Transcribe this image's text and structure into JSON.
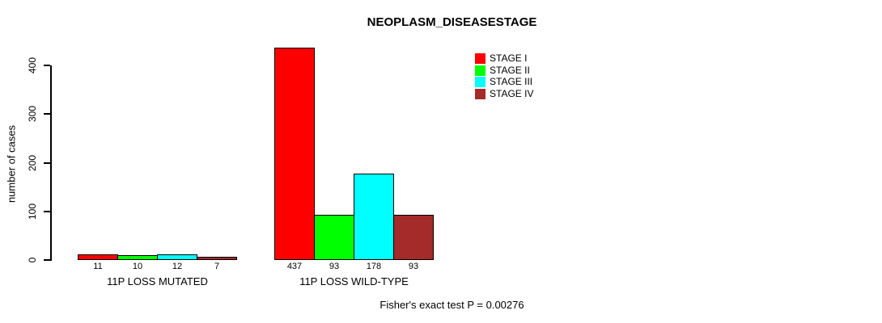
{
  "chart_data": {
    "type": "bar",
    "title": "NEOPLASM_DISEASESTAGE",
    "ylabel": "number of cases",
    "xlabel": "",
    "categories": [
      "11P LOSS MUTATED",
      "11P LOSS WILD-TYPE"
    ],
    "series": [
      {
        "name": "STAGE I",
        "color": "#ff0000",
        "values": [
          11,
          437
        ]
      },
      {
        "name": "STAGE II",
        "color": "#00ff00",
        "values": [
          10,
          93
        ]
      },
      {
        "name": "STAGE III",
        "color": "#00ffff",
        "values": [
          12,
          178
        ]
      },
      {
        "name": "STAGE IV",
        "color": "#a52a2a",
        "values": [
          7,
          93
        ]
      }
    ],
    "yticks": [
      0,
      100,
      200,
      300,
      400
    ],
    "ylim": [
      0,
      440
    ],
    "grid": false,
    "bar_value_labels": true,
    "legend_position": "top-right",
    "annotation": "Fisher's exact test P = 0.00276"
  }
}
